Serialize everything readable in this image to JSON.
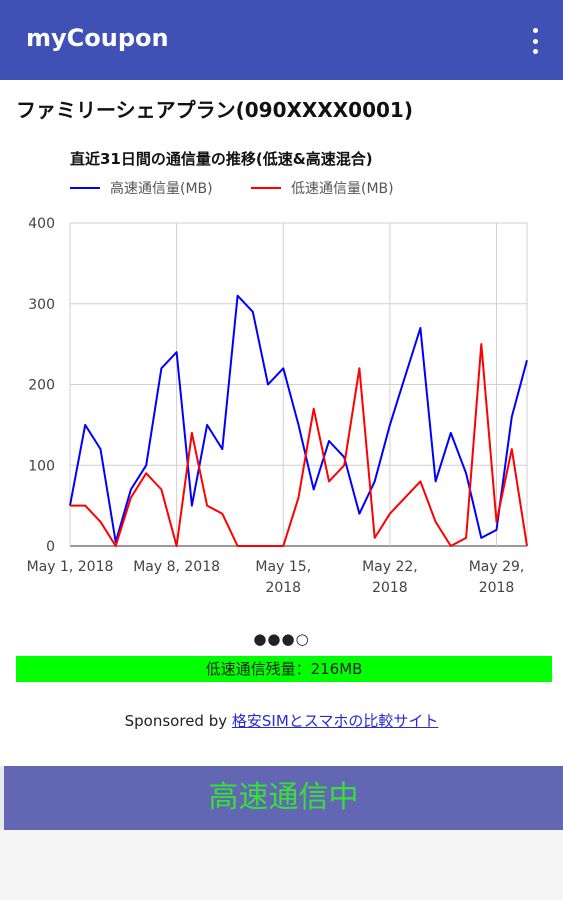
{
  "app": {
    "title": "myCoupon",
    "menu_icon": "more-vert-icon"
  },
  "plan": {
    "title": "ファミリーシェアプラン(090XXXX0001)"
  },
  "chart_data": {
    "type": "line",
    "title": "直近31日間の通信量の推移(低速&高速混合)",
    "ylabel": "",
    "xlabel": "",
    "ylim": [
      0,
      400
    ],
    "yticks": [
      0,
      100,
      200,
      300,
      400
    ],
    "grid": true,
    "legend_position": "top",
    "x": [
      "2018-05-01",
      "2018-05-02",
      "2018-05-03",
      "2018-05-04",
      "2018-05-05",
      "2018-05-06",
      "2018-05-07",
      "2018-05-08",
      "2018-05-09",
      "2018-05-10",
      "2018-05-11",
      "2018-05-12",
      "2018-05-13",
      "2018-05-14",
      "2018-05-15",
      "2018-05-16",
      "2018-05-17",
      "2018-05-18",
      "2018-05-19",
      "2018-05-20",
      "2018-05-21",
      "2018-05-22",
      "2018-05-23",
      "2018-05-24",
      "2018-05-25",
      "2018-05-26",
      "2018-05-27",
      "2018-05-28",
      "2018-05-29",
      "2018-05-30",
      "2018-05-31"
    ],
    "xtick_labels": [
      {
        "date": "2018-05-01",
        "lines": [
          "May 1, 2018"
        ]
      },
      {
        "date": "2018-05-08",
        "lines": [
          "May 8, 2018"
        ]
      },
      {
        "date": "2018-05-15",
        "lines": [
          "May 15,",
          "2018"
        ]
      },
      {
        "date": "2018-05-22",
        "lines": [
          "May 22,",
          "2018"
        ]
      },
      {
        "date": "2018-05-29",
        "lines": [
          "May 29,",
          "2018"
        ]
      }
    ],
    "series": [
      {
        "name": "高速通信量(MB)",
        "color": "#0000ff",
        "values": [
          50,
          150,
          120,
          5,
          70,
          100,
          220,
          240,
          50,
          150,
          120,
          310,
          290,
          200,
          220,
          150,
          70,
          130,
          110,
          40,
          80,
          150,
          210,
          270,
          80,
          140,
          90,
          10,
          20,
          160,
          230
        ]
      },
      {
        "name": "低速通信量(MB)",
        "color": "#ff0000",
        "values": [
          50,
          50,
          30,
          0,
          60,
          90,
          70,
          0,
          140,
          50,
          40,
          0,
          0,
          0,
          0,
          60,
          170,
          80,
          100,
          220,
          10,
          40,
          60,
          80,
          30,
          0,
          10,
          250,
          30,
          120,
          0
        ]
      }
    ]
  },
  "pager": {
    "dots": "●●●○"
  },
  "remain": {
    "label": "低速通信残量：216MB",
    "color": "#00ff00"
  },
  "sponsor": {
    "prefix": "Sponsored by",
    "link_text": "格安SIMとスマホの比較サイト"
  },
  "status": {
    "label": "高速通信中",
    "text_color": "#35e03a",
    "bg_color": "#6366b3"
  },
  "colors": {
    "appbar": "#3f51b5"
  }
}
